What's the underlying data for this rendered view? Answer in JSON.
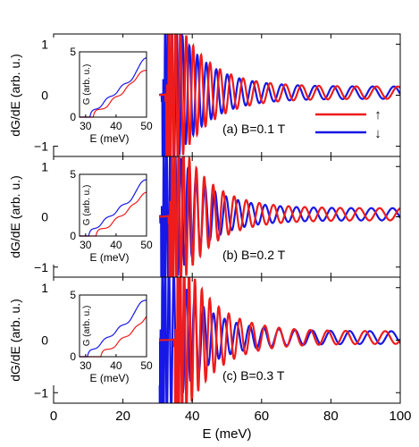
{
  "colors": {
    "up": "#ee1c1c",
    "down": "#1717e6",
    "axis": "#000000"
  },
  "chart_data": [
    {
      "type": "line",
      "xlabel": "E (meV)",
      "ylabel": "dG/dE (arb. u.)",
      "xlim": [
        0,
        100
      ],
      "ylim": [
        -1.2,
        1.2
      ],
      "xticks": [
        "0",
        "20",
        "40",
        "60",
        "80",
        "100"
      ],
      "yticks": [
        "−1",
        "0",
        "1"
      ],
      "panels": [
        {
          "label": "(a) B=0.1 T",
          "threshold_up": 32.5,
          "threshold_down": 31.4,
          "legend": {
            "up": "↑",
            "down": "↓"
          },
          "inset": {
            "xlabel": "E (meV)",
            "ylabel": "G (arb. u.)",
            "xlim": [
              28,
              50
            ],
            "ylim": [
              0,
              5
            ],
            "xticks": [
              "30",
              "40",
              "50"
            ],
            "yticks": [
              "0",
              "5"
            ]
          }
        },
        {
          "label": "(b) B=0.2 T",
          "threshold_up": 33.4,
          "threshold_down": 31.0,
          "inset": {
            "xlabel": "E (meV)",
            "ylabel": "G (arb. u.)",
            "xlim": [
              28,
              50
            ],
            "ylim": [
              0,
              5
            ],
            "xticks": [
              "30",
              "40",
              "50"
            ],
            "yticks": [
              "0",
              "5"
            ]
          }
        },
        {
          "label": "(c) B=0.3 T",
          "threshold_up": 35.0,
          "threshold_down": 30.6,
          "inset": {
            "xlabel": "E (meV)",
            "ylabel": "G (arb. u.)",
            "xlim": [
              28,
              50
            ],
            "ylim": [
              0,
              5
            ],
            "xticks": [
              "30",
              "40",
              "50"
            ],
            "yticks": [
              "0",
              "5"
            ]
          }
        }
      ],
      "series": [
        {
          "name": "↑",
          "color": "#ee1c1c"
        },
        {
          "name": "↓",
          "color": "#1717e6"
        }
      ]
    }
  ]
}
